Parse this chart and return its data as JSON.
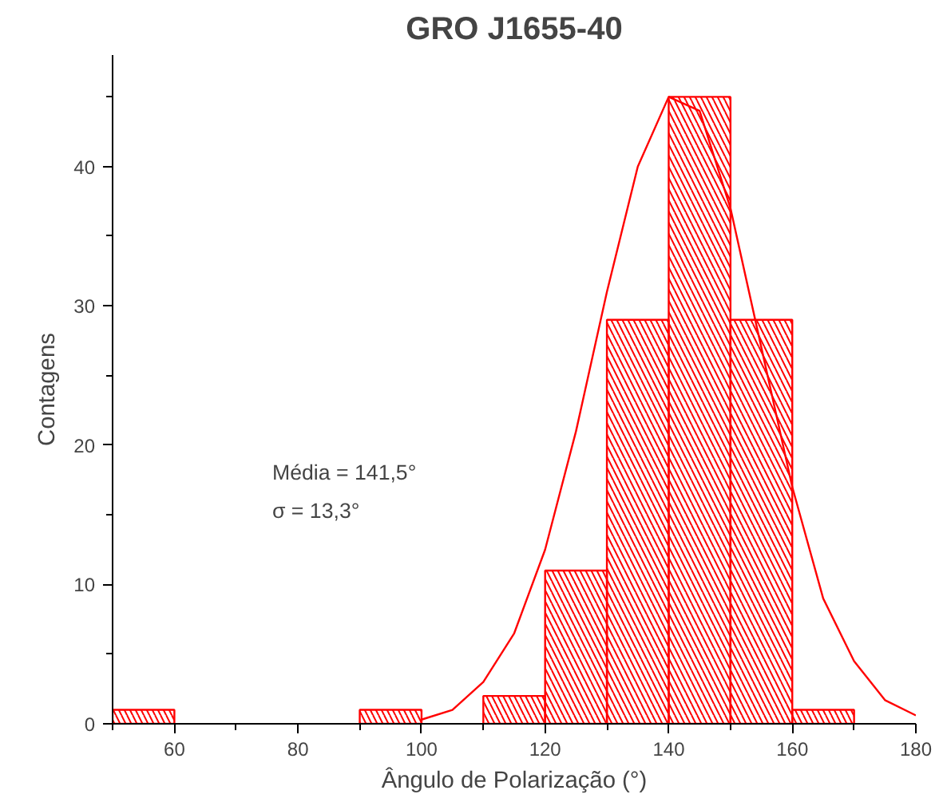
{
  "chart_data": {
    "type": "histogram",
    "title": "GRO J1655-40",
    "xlabel": "Ângulo de Polarização (°)",
    "ylabel": "Contagens",
    "annotations": [
      "Média = 141,5°",
      "σ = 13,3°"
    ],
    "bins": [
      50,
      60,
      70,
      80,
      90,
      100,
      110,
      120,
      130,
      140,
      150,
      160,
      170,
      180
    ],
    "values": [
      1,
      0,
      0,
      0,
      1,
      0,
      2,
      11,
      29,
      45,
      29,
      1,
      0
    ],
    "color": "#ff0000",
    "series": [
      {
        "type": "line",
        "color": "#ff0000",
        "x": [
          100,
          105,
          110,
          115,
          120,
          125,
          130,
          135,
          140,
          145,
          150,
          155,
          160,
          165,
          170,
          175,
          180
        ],
        "values": [
          0.3,
          1,
          3,
          6.5,
          12.5,
          21,
          31,
          40,
          45,
          44,
          37,
          27,
          17,
          9,
          4.5,
          1.7,
          0.6
        ]
      }
    ],
    "xlim": [
      50,
      180
    ],
    "ylim": [
      0,
      48
    ],
    "xticks": [
      {
        "value": 50,
        "label": null
      },
      60,
      {
        "value": 70,
        "label": null
      },
      80,
      {
        "value": 90,
        "label": null
      },
      100,
      {
        "value": 110,
        "label": null
      },
      120,
      {
        "value": 130,
        "label": null
      },
      140,
      {
        "value": 150,
        "label": null
      },
      160,
      {
        "value": 170,
        "label": null
      },
      180
    ],
    "yticks": [
      0,
      {
        "value": 5,
        "label": null
      },
      10,
      {
        "value": 15,
        "label": null
      },
      20,
      {
        "value": 25,
        "label": null
      },
      30,
      {
        "value": 35,
        "label": null
      },
      40,
      {
        "value": 45,
        "label": null
      }
    ],
    "grid": false
  }
}
